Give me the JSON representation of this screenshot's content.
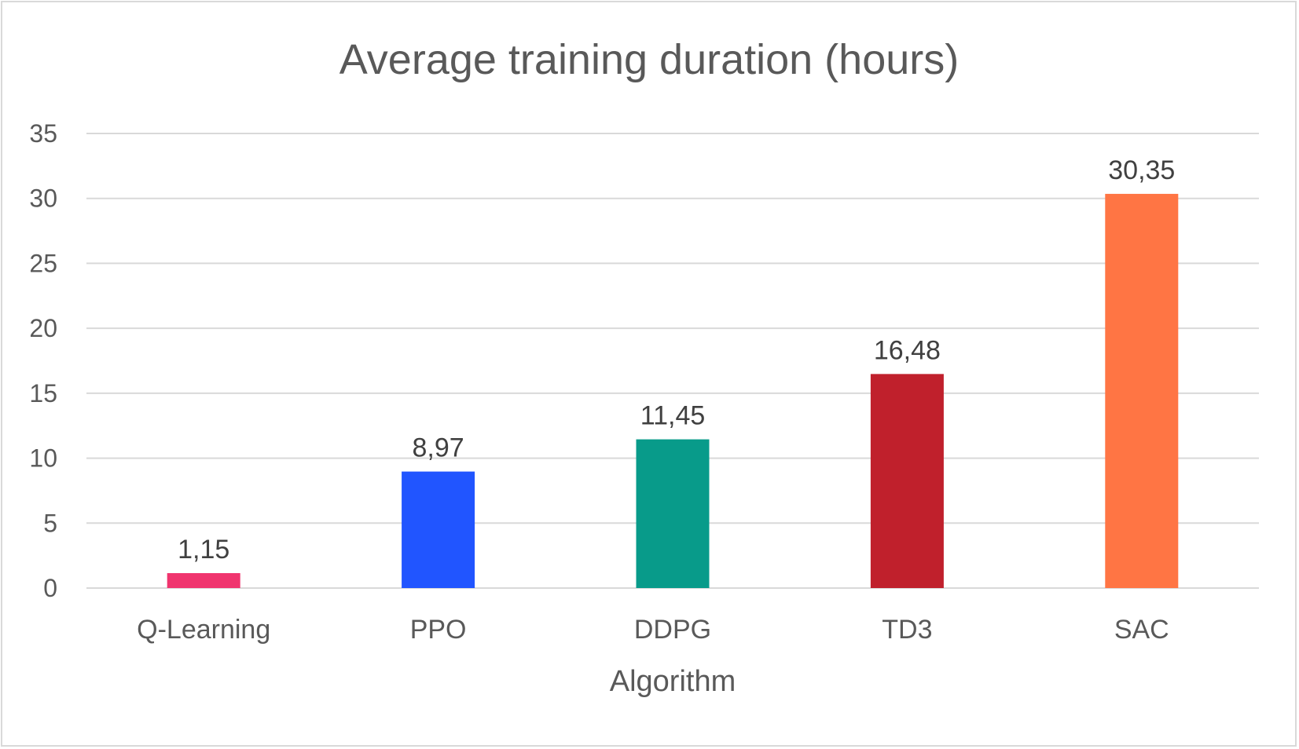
{
  "chart_data": {
    "type": "bar",
    "title": "Average training duration (hours)",
    "xlabel": "Algorithm",
    "ylabel": "",
    "categories": [
      "Q-Learning",
      "PPO",
      "DDPG",
      "TD3",
      "SAC"
    ],
    "values": [
      1.15,
      8.97,
      11.45,
      16.48,
      30.35
    ],
    "value_labels": [
      "1,15",
      "8,97",
      "11,45",
      "16,48",
      "30,35"
    ],
    "colors": [
      "#f0346e",
      "#2155ff",
      "#089b8a",
      "#c0202c",
      "#ff7544"
    ],
    "ylim": [
      0,
      35
    ],
    "yticks": [
      0,
      5,
      10,
      15,
      20,
      25,
      30,
      35
    ],
    "grid": true,
    "legend": "none"
  }
}
